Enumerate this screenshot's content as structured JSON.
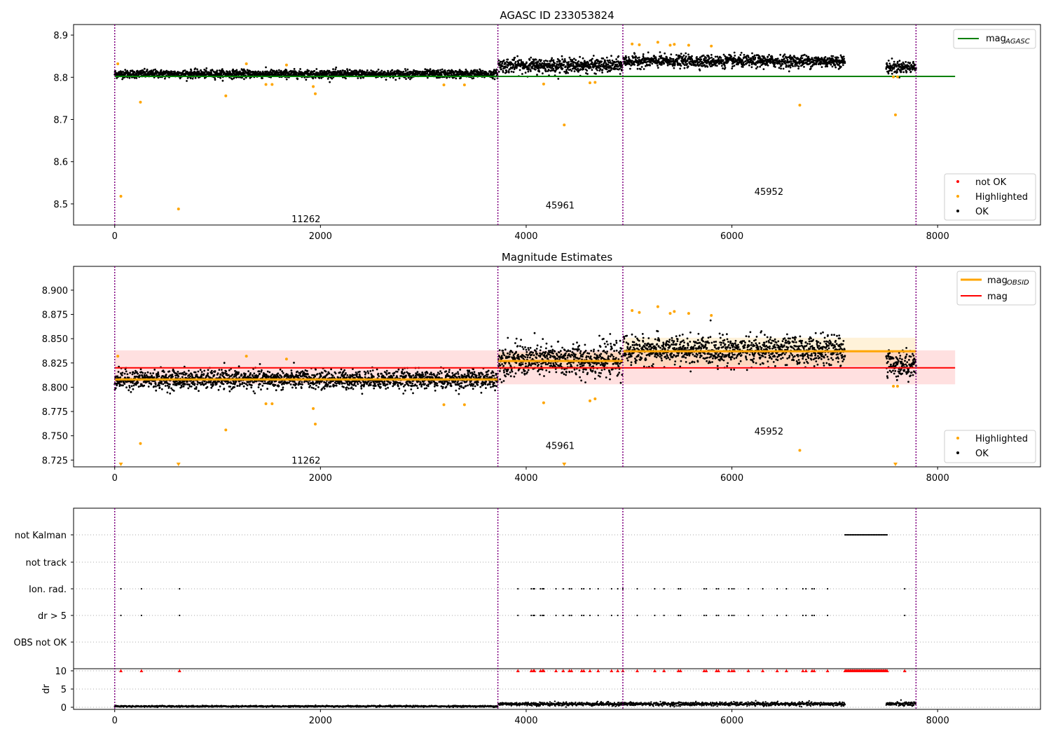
{
  "colors": {
    "ok": "#000000",
    "highlighted": "#ffa500",
    "not_ok": "#ff0000",
    "mag_agasc": "#008000",
    "mag_obsid": "#ffa500",
    "mag": "#ff0000",
    "obs_boundary": "#800080"
  },
  "obs_boundaries": [
    0,
    3725,
    4940,
    7790
  ],
  "obsid_labels": [
    {
      "text": "11262",
      "x": 1860
    },
    {
      "text": "45961",
      "x": 4330
    },
    {
      "text": "45952",
      "x": 6360
    }
  ],
  "chart_data": [
    {
      "type": "scatter",
      "title": "AGASC ID 233053824",
      "xlim": [
        -400,
        9000
      ],
      "ylim": [
        8.45,
        8.925
      ],
      "x_ticks": [
        0,
        2000,
        4000,
        6000,
        8000
      ],
      "y_ticks": [
        8.5,
        8.6,
        8.7,
        8.8,
        8.9
      ],
      "legend_upper": {
        "position": "upper-right",
        "entries": [
          {
            "label": "mag",
            "sub": "AGASC",
            "kind": "line",
            "color_key": "mag_agasc"
          }
        ]
      },
      "legend_lower": {
        "position": "lower-right",
        "entries": [
          {
            "label": "not OK",
            "kind": "dot",
            "color_key": "not_ok"
          },
          {
            "label": "Highlighted",
            "kind": "dot",
            "color_key": "highlighted"
          },
          {
            "label": "OK",
            "kind": "dot",
            "color_key": "ok"
          }
        ]
      },
      "mag_agasc": 8.802,
      "mag_agasc_x": [
        0,
        8170
      ],
      "obsid_label_y": [
        8.465,
        8.497,
        8.53
      ],
      "series": [
        {
          "name": "OK",
          "segments": [
            {
              "x": [
                0,
                3725
              ],
              "mean": 8.808,
              "spread": 0.008
            },
            {
              "x": [
                3730,
                4935
              ],
              "mean": 8.828,
              "spread": 0.014
            },
            {
              "x": [
                4945,
                7100
              ],
              "mean": 8.838,
              "spread": 0.012
            },
            {
              "x": [
                7500,
                7790
              ],
              "mean": 8.824,
              "spread": 0.012
            }
          ]
        },
        {
          "name": "Highlighted",
          "x": [
            30,
            60,
            250,
            620,
            1080,
            1280,
            1470,
            1530,
            1670,
            1930,
            1950,
            3200,
            3400,
            4170,
            4370,
            4620,
            4670,
            5030,
            5100,
            5280,
            5400,
            5440,
            5580,
            5800,
            6660,
            7570,
            7590,
            7610
          ],
          "y": [
            8.832,
            8.518,
            8.741,
            8.488,
            8.756,
            8.832,
            8.783,
            8.783,
            8.829,
            8.778,
            8.761,
            8.782,
            8.782,
            8.784,
            8.687,
            8.787,
            8.788,
            8.879,
            8.877,
            8.883,
            8.876,
            8.878,
            8.876,
            8.874,
            8.734,
            8.801,
            8.711,
            8.801
          ]
        }
      ]
    },
    {
      "type": "scatter",
      "title": "Magnitude Estimates",
      "xlim": [
        -400,
        9000
      ],
      "ylim": [
        8.718,
        8.9245
      ],
      "x_ticks": [
        0,
        2000,
        4000,
        6000,
        8000
      ],
      "y_ticks": [
        8.725,
        8.75,
        8.775,
        8.8,
        8.825,
        8.85,
        8.875,
        8.9
      ],
      "y_tick_labels": [
        "8.725",
        "8.750",
        "8.775",
        "8.800",
        "8.825",
        "8.850",
        "8.875",
        "8.900"
      ],
      "legend_upper": {
        "position": "upper-right",
        "entries": [
          {
            "label": "mag",
            "sub": "OBSID",
            "kind": "line",
            "color_key": "mag_obsid"
          },
          {
            "label": "mag",
            "kind": "line",
            "color_key": "mag"
          }
        ]
      },
      "legend_lower": {
        "position": "lower-right",
        "entries": [
          {
            "label": "Highlighted",
            "kind": "dot",
            "color_key": "highlighted"
          },
          {
            "label": "OK",
            "kind": "dot",
            "color_key": "ok"
          }
        ]
      },
      "mag": 8.82,
      "mag_band": [
        8.803,
        8.838
      ],
      "mag_x": [
        0,
        8170
      ],
      "mag_obsid": [
        {
          "x": [
            0,
            3725
          ],
          "value": 8.808,
          "band": [
            8.806,
            8.81
          ]
        },
        {
          "x": [
            3730,
            4940
          ],
          "value": 8.827,
          "band": [
            8.818,
            8.836
          ]
        },
        {
          "x": [
            4945,
            7790
          ],
          "value": 8.837,
          "band": [
            8.822,
            8.851
          ]
        }
      ],
      "obsid_label_y": [
        8.725,
        8.74,
        8.755
      ],
      "series": [
        {
          "name": "OK",
          "segments": [
            {
              "x": [
                0,
                3725
              ],
              "mean": 8.808,
              "spread": 0.008
            },
            {
              "x": [
                3730,
                4935
              ],
              "mean": 8.828,
              "spread": 0.014
            },
            {
              "x": [
                4945,
                7100
              ],
              "mean": 8.838,
              "spread": 0.012
            },
            {
              "x": [
                7500,
                7790
              ],
              "mean": 8.824,
              "spread": 0.012
            }
          ]
        },
        {
          "name": "Highlighted",
          "x": [
            30,
            250,
            1080,
            1280,
            1470,
            1530,
            1670,
            1930,
            1950,
            3200,
            3400,
            4170,
            4620,
            4670,
            5030,
            5100,
            5280,
            5400,
            5440,
            5580,
            5800,
            6660,
            7570,
            7610
          ],
          "y": [
            8.832,
            8.742,
            8.756,
            8.832,
            8.783,
            8.783,
            8.829,
            8.778,
            8.762,
            8.782,
            8.782,
            8.784,
            8.786,
            8.788,
            8.879,
            8.877,
            8.883,
            8.876,
            8.878,
            8.876,
            8.874,
            8.735,
            8.801,
            8.801
          ]
        },
        {
          "name": "Highlighted (below range)",
          "x": [
            60,
            620,
            4370,
            7590
          ],
          "marker": "triangle-down"
        }
      ]
    },
    {
      "type": "scatter",
      "xlim": [
        -400,
        9000
      ],
      "categories": [
        "not Kalman",
        "not track",
        "Ion. rad.",
        "dr > 5",
        "OBS not OK"
      ],
      "dr_ylabel": "dr",
      "dr_ylim": [
        -0.5,
        10.5
      ],
      "dr_ticks": [
        0,
        5,
        10
      ],
      "x_ticks": [
        0,
        2000,
        4000,
        6000,
        8000
      ],
      "flags": {
        "not Kalman": {
          "range": [
            7100,
            7510
          ]
        },
        "not track": {
          "x": []
        },
        "Ion. rad.": {
          "x": [
            60,
            260,
            630,
            3920,
            4050,
            4070,
            4080,
            4140,
            4160,
            4170,
            4290,
            4360,
            4420,
            4440,
            4540,
            4560,
            4620,
            4700,
            4830,
            4890,
            4940,
            5080,
            5250,
            5340,
            5480,
            5500,
            5730,
            5750,
            5850,
            5870,
            5970,
            6000,
            6020,
            6160,
            6300,
            6440,
            6530,
            6690,
            6720,
            6780,
            6800,
            6930,
            7680
          ]
        },
        "dr > 5": {
          "x": [
            60,
            260,
            630,
            3920,
            4050,
            4070,
            4080,
            4140,
            4160,
            4170,
            4290,
            4360,
            4420,
            4440,
            4540,
            4560,
            4620,
            4700,
            4830,
            4890,
            4940,
            5080,
            5250,
            5340,
            5480,
            5500,
            5730,
            5750,
            5850,
            5870,
            5970,
            6000,
            6020,
            6160,
            6300,
            6440,
            6530,
            6690,
            6720,
            6780,
            6800,
            6930,
            7680
          ]
        },
        "OBS not OK": {
          "x": []
        }
      },
      "dr_high_x": [
        60,
        260,
        630,
        3920,
        4050,
        4070,
        4080,
        4140,
        4160,
        4170,
        4290,
        4360,
        4420,
        4440,
        4540,
        4560,
        4620,
        4700,
        4830,
        4890,
        4940,
        5080,
        5250,
        5340,
        5480,
        5500,
        5730,
        5750,
        5850,
        5870,
        5970,
        6000,
        6020,
        6160,
        6300,
        6440,
        6530,
        6690,
        6720,
        6780,
        6800,
        6930,
        7680
      ],
      "dr_segments": [
        {
          "x": [
            0,
            3725
          ],
          "mean": 0.25,
          "spread": 0.2
        },
        {
          "x": [
            3730,
            7100
          ],
          "mean": 0.9,
          "spread": 0.5
        },
        {
          "x": [
            7500,
            7790
          ],
          "mean": 0.9,
          "spread": 0.6
        }
      ]
    }
  ]
}
